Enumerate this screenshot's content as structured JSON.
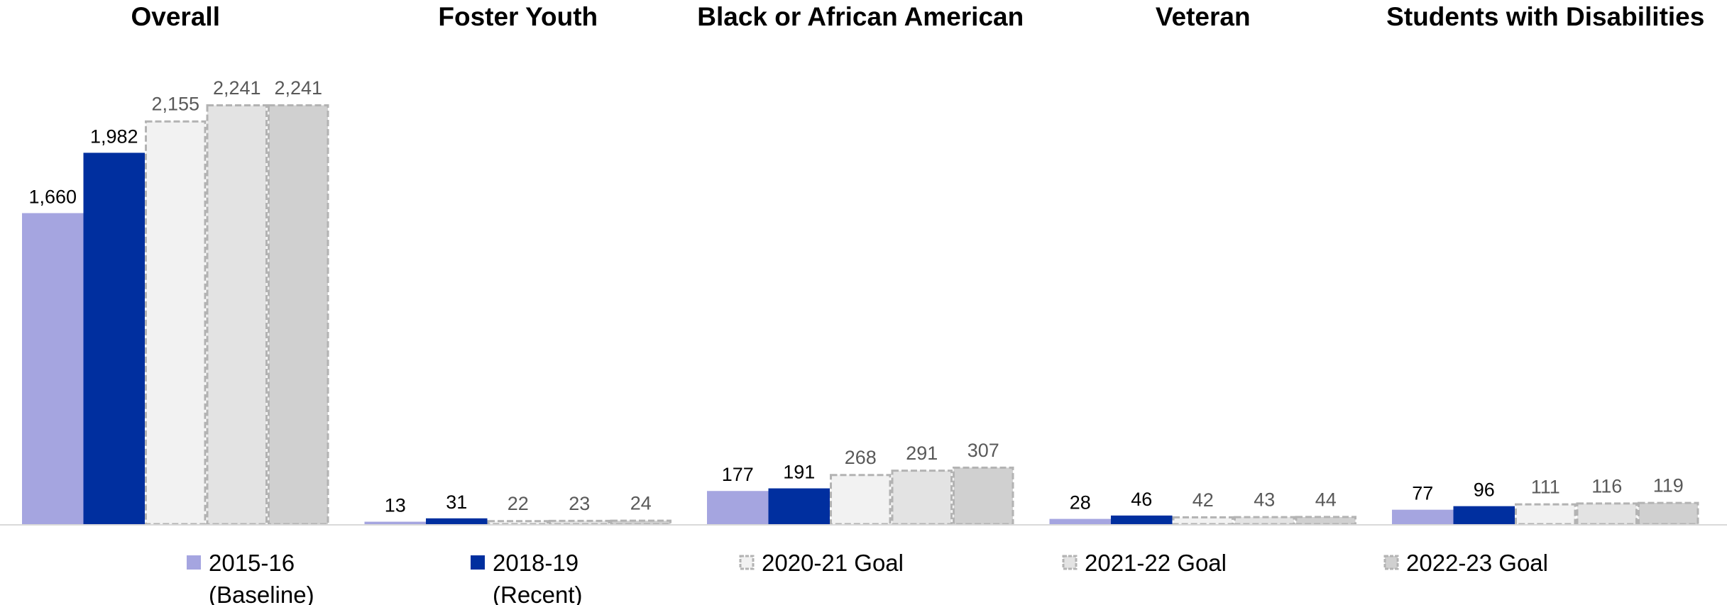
{
  "chart_data": {
    "type": "bar",
    "groups": [
      "Overall",
      "Foster Youth",
      "Black or African American",
      "Veteran",
      "Students with Disabilities"
    ],
    "series": [
      {
        "name": "2015-16 (Baseline)",
        "legend_lines": [
          "2015-16",
          "(Baseline)"
        ],
        "values": [
          1660,
          13,
          177,
          28,
          77
        ],
        "labels": [
          "1,660",
          "13",
          "177",
          "28",
          "77"
        ],
        "color": "#a5a5e0",
        "goal": false
      },
      {
        "name": "2018-19 (Recent)",
        "legend_lines": [
          "2018-19",
          "(Recent)"
        ],
        "values": [
          1982,
          31,
          191,
          46,
          96
        ],
        "labels": [
          "1,982",
          "31",
          "191",
          "46",
          "96"
        ],
        "color": "#002f9f",
        "goal": false
      },
      {
        "name": "2020-21 Goal",
        "legend_lines": [
          "2020-21 Goal"
        ],
        "values": [
          2155,
          22,
          268,
          42,
          111
        ],
        "labels": [
          "2,155",
          "22",
          "268",
          "42",
          "111"
        ],
        "color": "#f2f2f2",
        "goal": true
      },
      {
        "name": "2021-22 Goal",
        "legend_lines": [
          "2021-22 Goal"
        ],
        "values": [
          2241,
          23,
          291,
          43,
          116
        ],
        "labels": [
          "2,241",
          "23",
          "291",
          "43",
          "116"
        ],
        "color": "#e3e3e3",
        "goal": true
      },
      {
        "name": "2022-23 Goal",
        "legend_lines": [
          "2022-23 Goal"
        ],
        "values": [
          2241,
          24,
          307,
          44,
          119
        ],
        "labels": [
          "2,241",
          "24",
          "307",
          "44",
          "119"
        ],
        "color": "#d0d0d0",
        "goal": true
      }
    ],
    "ylim": [
      0,
      2241
    ],
    "grid": false,
    "legend_position": "bottom",
    "goal_border_color": "#b3b3b3",
    "axis_color": "#d9d9d9"
  }
}
